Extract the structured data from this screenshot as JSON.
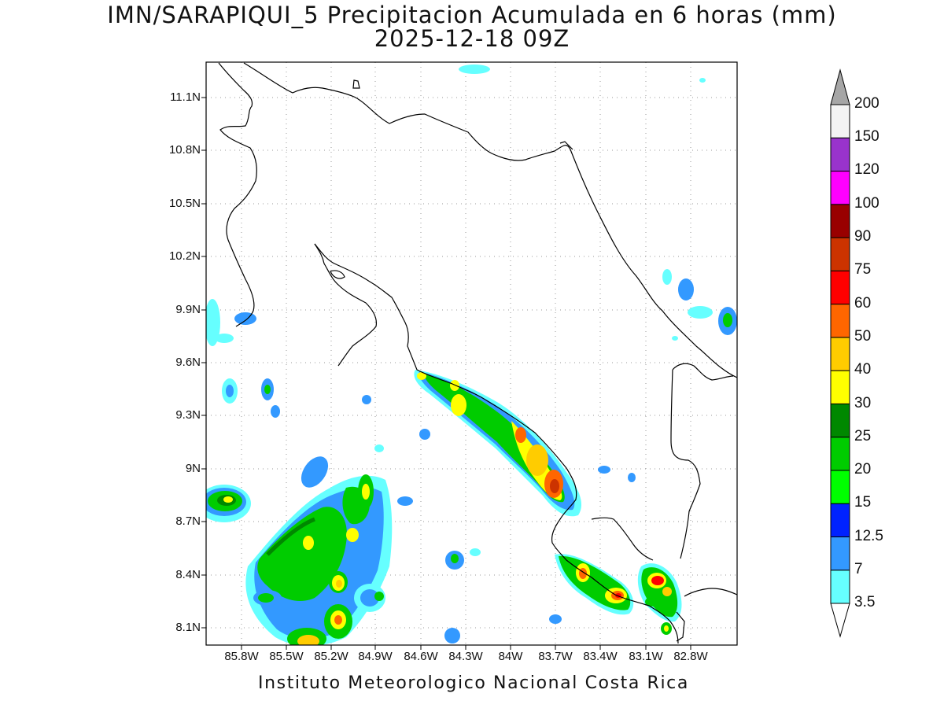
{
  "title": {
    "line1": "IMN/SARAPIQUI_5 Precipitacion Acumulada en 6 horas (mm)",
    "line2": "2025-12-18 09Z"
  },
  "footer": "Instituto Meteorologico Nacional Costa Rica",
  "axes": {
    "y_ticks": [
      "11.1N",
      "10.8N",
      "10.5N",
      "10.2N",
      "9.9N",
      "9.6N",
      "9.3N",
      "9N",
      "8.7N",
      "8.4N",
      "8.1N"
    ],
    "x_ticks": [
      "85.8W",
      "85.5W",
      "85.2W",
      "84.9W",
      "84.6W",
      "84.3W",
      "84W",
      "83.7W",
      "83.4W",
      "83.1W",
      "82.8W"
    ]
  },
  "colorbar": {
    "labels": [
      "3.5",
      "7",
      "12.5",
      "15",
      "20",
      "25",
      "30",
      "40",
      "50",
      "60",
      "75",
      "90",
      "100",
      "120",
      "150",
      "200"
    ],
    "colors": [
      "#66ffff",
      "#3399ff",
      "#0022ff",
      "#00ff00",
      "#00cc00",
      "#008800",
      "#ffff00",
      "#ffcc00",
      "#ff6600",
      "#ff0000",
      "#cc3300",
      "#990000",
      "#ff00ff",
      "#9933cc",
      "#f4f4f4"
    ],
    "over_color": "#a6a6a6",
    "under_color": "#ffffff"
  },
  "colors": {
    "coastline": "#000000",
    "grid": "#9a9a9a"
  }
}
